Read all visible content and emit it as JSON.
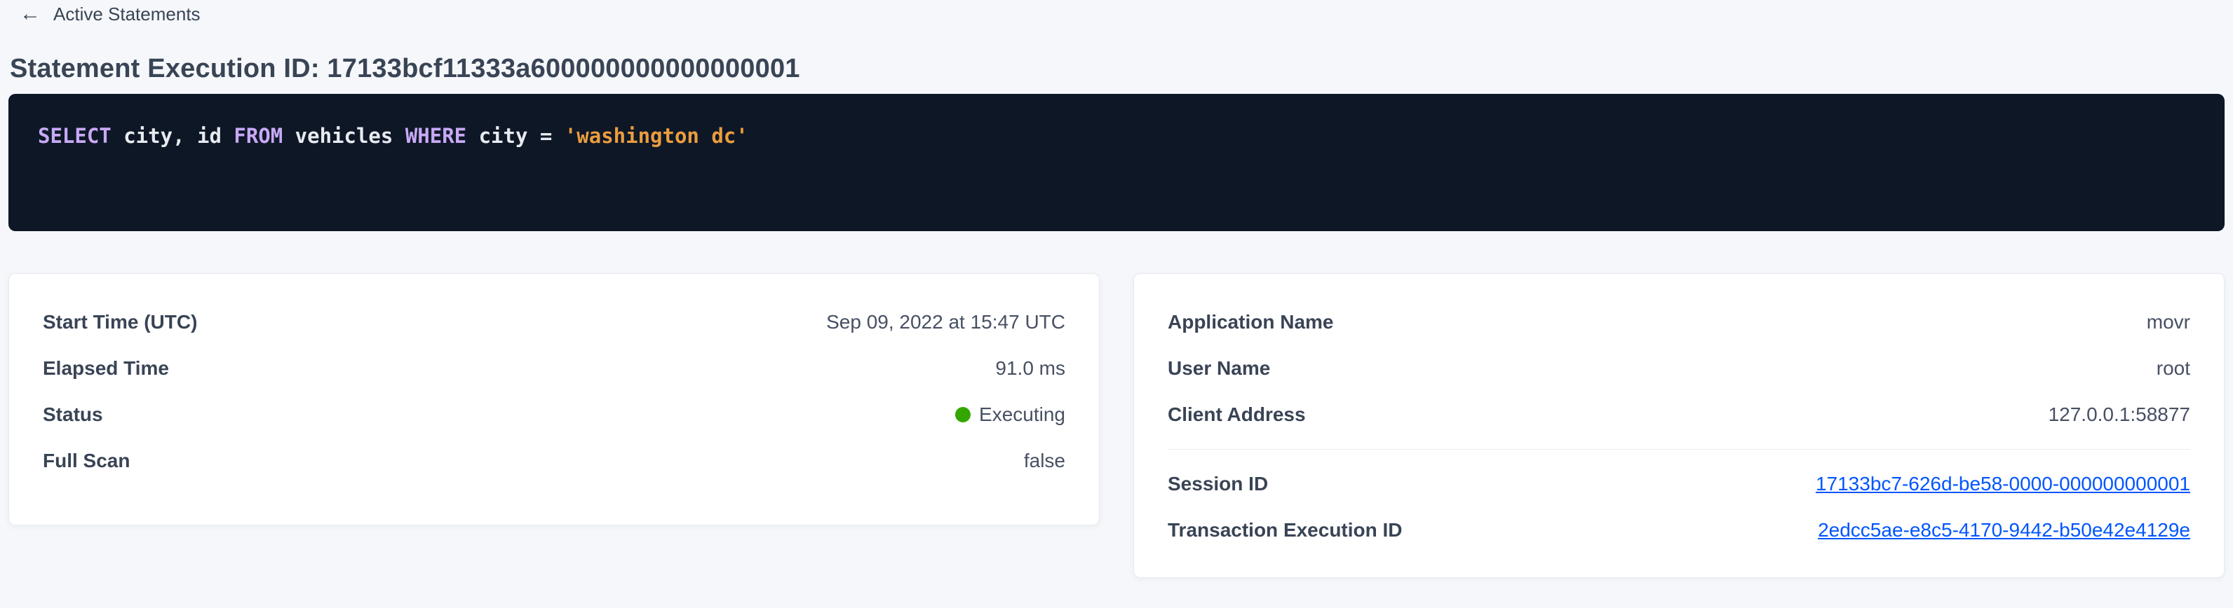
{
  "back_link": {
    "label": "Active Statements"
  },
  "page": {
    "title": "Statement Execution ID: 17133bcf11333a600000000000000001"
  },
  "sql": {
    "statement": "SELECT city, id FROM vehicles WHERE city = 'washington dc'",
    "tokens": [
      {
        "type": "keyword",
        "text": "SELECT"
      },
      {
        "type": "plain",
        "text": " city, id "
      },
      {
        "type": "keyword",
        "text": "FROM"
      },
      {
        "type": "plain",
        "text": " vehicles "
      },
      {
        "type": "keyword",
        "text": "WHERE"
      },
      {
        "type": "plain",
        "text": " city = "
      },
      {
        "type": "string",
        "text": "'washington dc'"
      }
    ]
  },
  "cards": {
    "left": {
      "rows": [
        {
          "label": "Start Time (UTC)",
          "value": "Sep 09, 2022 at 15:47 UTC"
        },
        {
          "label": "Elapsed Time",
          "value": "91.0 ms"
        },
        {
          "label": "Status",
          "value": "Executing"
        },
        {
          "label": "Full Scan",
          "value": "false"
        }
      ]
    },
    "right": {
      "rows": [
        {
          "label": "Application Name",
          "value": "movr"
        },
        {
          "label": "User Name",
          "value": "root"
        },
        {
          "label": "Client Address",
          "value": "127.0.0.1:58877"
        },
        {
          "label": "Session ID",
          "value": "17133bc7-626d-be58-0000-000000000001",
          "link": true
        },
        {
          "label": "Transaction Execution ID",
          "value": "2edcc5ae-e8c5-4170-9442-b50e42e4129e",
          "link": true
        }
      ]
    }
  },
  "colors": {
    "page_background": "#f5f7fa",
    "sql_background": "#0e1726",
    "sql_keyword": "#c8a9f5",
    "sql_string": "#eb9d3f",
    "sql_plain": "#e7ebf0",
    "status_executing_dot": "#33a700",
    "link": "#0055ff",
    "heading_text": "#394455"
  }
}
